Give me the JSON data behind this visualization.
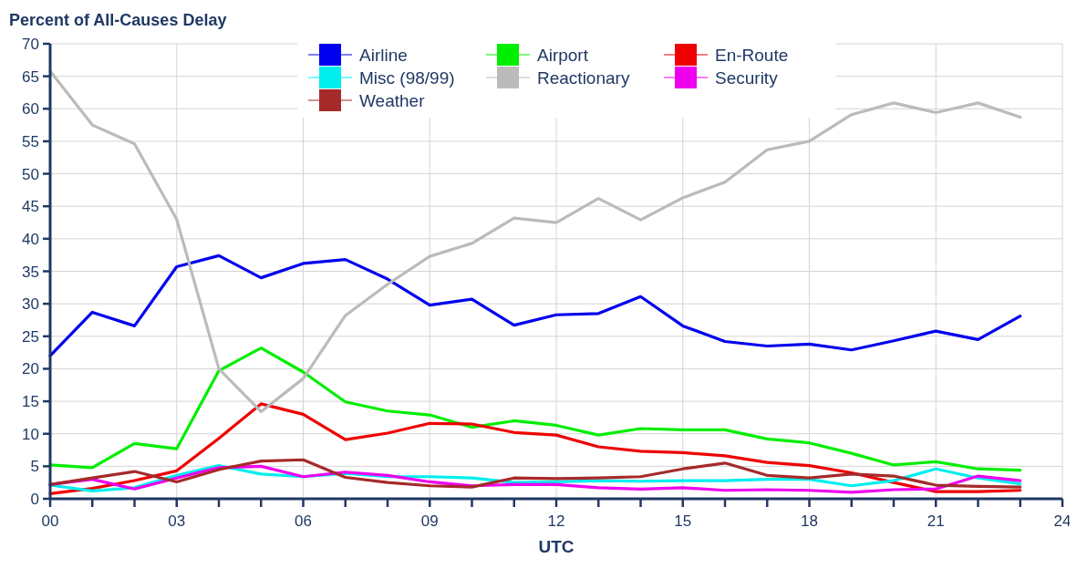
{
  "chart_data": {
    "type": "line",
    "ylabel": "Percent of All-Causes Delay",
    "xlabel": "UTC",
    "x": [
      0,
      1,
      2,
      3,
      4,
      5,
      6,
      7,
      8,
      9,
      10,
      11,
      12,
      13,
      14,
      15,
      16,
      17,
      18,
      19,
      20,
      21,
      22,
      23
    ],
    "xlim": [
      0,
      24
    ],
    "xticks": [
      {
        "value": 0,
        "label": "00"
      },
      {
        "value": 1,
        "label": null
      },
      {
        "value": 2,
        "label": null
      },
      {
        "value": 3,
        "label": "03"
      },
      {
        "value": 4,
        "label": null
      },
      {
        "value": 5,
        "label": null
      },
      {
        "value": 6,
        "label": "06"
      },
      {
        "value": 7,
        "label": null
      },
      {
        "value": 8,
        "label": null
      },
      {
        "value": 9,
        "label": "09"
      },
      {
        "value": 10,
        "label": null
      },
      {
        "value": 11,
        "label": null
      },
      {
        "value": 12,
        "label": "12"
      },
      {
        "value": 13,
        "label": null
      },
      {
        "value": 14,
        "label": null
      },
      {
        "value": 15,
        "label": "15"
      },
      {
        "value": 16,
        "label": null
      },
      {
        "value": 17,
        "label": null
      },
      {
        "value": 18,
        "label": "18"
      },
      {
        "value": 19,
        "label": null
      },
      {
        "value": 20,
        "label": null
      },
      {
        "value": 21,
        "label": "21"
      },
      {
        "value": 22,
        "label": null
      },
      {
        "value": 23,
        "label": null
      },
      {
        "value": 24,
        "label": "24"
      }
    ],
    "ylim": [
      0,
      70
    ],
    "yticks": [
      0,
      5,
      10,
      15,
      20,
      25,
      30,
      35,
      40,
      45,
      50,
      55,
      60,
      65,
      70
    ],
    "grid": true,
    "legend": "top",
    "marker": "none",
    "line_style": "solid",
    "series": [
      {
        "name": "Airline",
        "color": "#0000ee",
        "values": [
          22,
          28.7,
          26.6,
          35.7,
          37.4,
          34,
          36.2,
          36.8,
          33.8,
          29.8,
          30.7,
          26.7,
          28.3,
          28.5,
          31.1,
          26.6,
          24.2,
          23.5,
          23.8,
          22.9,
          24.3,
          25.8,
          24.5,
          28.1
        ]
      },
      {
        "name": "Airport",
        "color": "#00ee00",
        "values": [
          5.2,
          4.8,
          8.5,
          7.7,
          19.7,
          23.2,
          19.5,
          14.9,
          13.5,
          12.9,
          11,
          12,
          11.3,
          9.8,
          10.8,
          10.6,
          10.6,
          9.2,
          8.6,
          7,
          5.2,
          5.7,
          4.6,
          4.4
        ]
      },
      {
        "name": "En-Route",
        "color": "#ee0000",
        "values": [
          0.8,
          1.6,
          2.8,
          4.3,
          9.3,
          14.6,
          13,
          9.1,
          10.1,
          11.6,
          11.5,
          10.2,
          9.8,
          8,
          7.3,
          7.1,
          6.6,
          5.6,
          5.1,
          4,
          2.5,
          1.1,
          1.1,
          1.3
        ]
      },
      {
        "name": "Misc (98/99)",
        "color": "#00eeee",
        "values": [
          2.1,
          1.2,
          1.7,
          3.6,
          5.1,
          3.8,
          3.4,
          3.9,
          3.4,
          3.4,
          3.2,
          2.5,
          2.6,
          2.8,
          2.7,
          2.8,
          2.8,
          3,
          3,
          2,
          2.8,
          4.6,
          3.2,
          2.3
        ]
      },
      {
        "name": "Reactionary",
        "color": "#bbbbbb",
        "values": [
          65.8,
          57.5,
          54.6,
          43,
          20,
          13.4,
          18.5,
          28.2,
          33,
          37.3,
          39.3,
          43.2,
          42.5,
          46.2,
          42.9,
          46.3,
          48.7,
          53.7,
          55,
          59.1,
          60.9,
          59.4,
          60.9,
          58.7
        ]
      },
      {
        "name": "Security",
        "color": "#ee00ee",
        "values": [
          2.2,
          3,
          1.5,
          3.2,
          4.8,
          5,
          3.4,
          4.1,
          3.6,
          2.6,
          2,
          2.2,
          2.2,
          1.7,
          1.5,
          1.7,
          1.3,
          1.4,
          1.3,
          1,
          1.4,
          1.5,
          3.5,
          2.8
        ]
      },
      {
        "name": "Weather",
        "color": "#a52a2a",
        "values": [
          2.2,
          3.2,
          4.2,
          2.6,
          4.5,
          5.8,
          6,
          3.3,
          2.5,
          2,
          1.8,
          3.2,
          3.1,
          3.2,
          3.4,
          4.6,
          5.5,
          3.6,
          3.2,
          3.8,
          3.5,
          2.1,
          1.9,
          1.8
        ]
      }
    ]
  }
}
